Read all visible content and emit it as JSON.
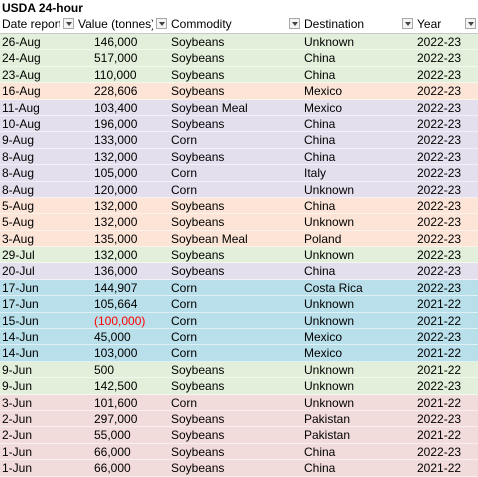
{
  "title": "USDA 24-hour",
  "columns": [
    "Date reported",
    "Value (tonnes)",
    "Commodity",
    "Destination",
    "Year"
  ],
  "colors": {
    "green": "#e2efda",
    "lavender": "#e4dfec",
    "peach": "#fce4d6",
    "blue": "#b8dfea",
    "pink": "#f2dcdb",
    "negative_text": "#ff0000"
  },
  "rows": [
    {
      "date": "26-Aug",
      "value": "146,000",
      "commodity": "Soybeans",
      "destination": "Unknown",
      "year": "2022-23",
      "color": "green"
    },
    {
      "date": "24-Aug",
      "value": "517,000",
      "commodity": "Soybeans",
      "destination": "China",
      "year": "2022-23",
      "color": "green"
    },
    {
      "date": "23-Aug",
      "value": "110,000",
      "commodity": "Soybeans",
      "destination": "China",
      "year": "2022-23",
      "color": "green"
    },
    {
      "date": "16-Aug",
      "value": "228,606",
      "commodity": "Soybeans",
      "destination": "Mexico",
      "year": "2022-23",
      "color": "peach"
    },
    {
      "date": "11-Aug",
      "value": "103,400",
      "commodity": "Soybean Meal",
      "destination": "Mexico",
      "year": "2022-23",
      "color": "lavender"
    },
    {
      "date": "10-Aug",
      "value": "196,000",
      "commodity": "Soybeans",
      "destination": "China",
      "year": "2022-23",
      "color": "lavender"
    },
    {
      "date": "9-Aug",
      "value": "133,000",
      "commodity": "Corn",
      "destination": "China",
      "year": "2022-23",
      "color": "lavender"
    },
    {
      "date": "8-Aug",
      "value": "132,000",
      "commodity": "Soybeans",
      "destination": "China",
      "year": "2022-23",
      "color": "lavender"
    },
    {
      "date": "8-Aug",
      "value": "105,000",
      "commodity": "Corn",
      "destination": "Italy",
      "year": "2022-23",
      "color": "lavender"
    },
    {
      "date": "8-Aug",
      "value": "120,000",
      "commodity": "Corn",
      "destination": "Unknown",
      "year": "2022-23",
      "color": "lavender"
    },
    {
      "date": "5-Aug",
      "value": "132,000",
      "commodity": "Soybeans",
      "destination": "China",
      "year": "2022-23",
      "color": "peach"
    },
    {
      "date": "5-Aug",
      "value": "132,000",
      "commodity": "Soybeans",
      "destination": "Unknown",
      "year": "2022-23",
      "color": "peach"
    },
    {
      "date": "3-Aug",
      "value": "135,000",
      "commodity": "Soybean Meal",
      "destination": "Poland",
      "year": "2022-23",
      "color": "peach"
    },
    {
      "date": "29-Jul",
      "value": "132,000",
      "commodity": "Soybeans",
      "destination": "Unknown",
      "year": "2022-23",
      "color": "green"
    },
    {
      "date": "20-Jul",
      "value": "136,000",
      "commodity": "Soybeans",
      "destination": "China",
      "year": "2022-23",
      "color": "lavender"
    },
    {
      "date": "17-Jun",
      "value": "144,907",
      "commodity": "Corn",
      "destination": "Costa Rica",
      "year": "2022-23",
      "color": "blue"
    },
    {
      "date": "17-Jun",
      "value": "105,664",
      "commodity": "Corn",
      "destination": "Unknown",
      "year": "2021-22",
      "color": "blue"
    },
    {
      "date": "15-Jun",
      "value": "(100,000)",
      "commodity": "Corn",
      "destination": "Unknown",
      "year": "2021-22",
      "color": "blue",
      "negative": true
    },
    {
      "date": "14-Jun",
      "value": "45,000",
      "commodity": "Corn",
      "destination": "Mexico",
      "year": "2022-23",
      "color": "blue"
    },
    {
      "date": "14-Jun",
      "value": "103,000",
      "commodity": "Corn",
      "destination": "Mexico",
      "year": "2021-22",
      "color": "blue"
    },
    {
      "date": "9-Jun",
      "value": "500",
      "commodity": "Soybeans",
      "destination": "Unknown",
      "year": "2021-22",
      "color": "green"
    },
    {
      "date": "9-Jun",
      "value": "142,500",
      "commodity": "Soybeans",
      "destination": "Unknown",
      "year": "2022-23",
      "color": "green"
    },
    {
      "date": "3-Jun",
      "value": "101,600",
      "commodity": "Corn",
      "destination": "Unknown",
      "year": "2021-22",
      "color": "pink"
    },
    {
      "date": "2-Jun",
      "value": "297,000",
      "commodity": "Soybeans",
      "destination": "Pakistan",
      "year": "2022-23",
      "color": "pink"
    },
    {
      "date": "2-Jun",
      "value": "55,000",
      "commodity": "Soybeans",
      "destination": "Pakistan",
      "year": "2021-22",
      "color": "pink"
    },
    {
      "date": "1-Jun",
      "value": "66,000",
      "commodity": "Soybeans",
      "destination": "China",
      "year": "2022-23",
      "color": "pink"
    },
    {
      "date": "1-Jun",
      "value": "66,000",
      "commodity": "Soybeans",
      "destination": "China",
      "year": "2021-22",
      "color": "pink"
    }
  ]
}
